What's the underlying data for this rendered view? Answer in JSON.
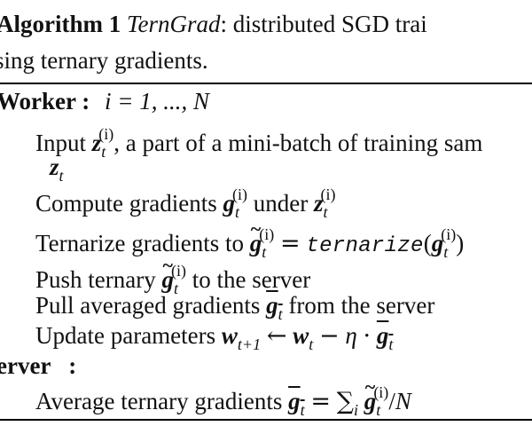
{
  "algorithm": {
    "label": "Algorithm 1",
    "name": "TernGrad",
    "title_line1": ": distributed SGD trai",
    "title_line2": "sing ternary gradients."
  },
  "worker": {
    "header": "Worker :",
    "range": "i = 1, ..., N",
    "steps": {
      "input_prefix": "Input",
      "input_suffix": ", a part of a mini-batch of training sam",
      "compute_prefix": "Compute gradients",
      "compute_mid": "under",
      "ternarize_prefix": "Ternarize gradients to",
      "ternarize_fn": "ternarize",
      "push_prefix": "Push ternary",
      "push_suffix": "to the server",
      "pull_prefix": "Pull averaged gradients",
      "pull_suffix": "from the server",
      "update_prefix": "Update parameters"
    }
  },
  "server": {
    "header": "erver   :",
    "average_prefix": "Average ternary gradients"
  },
  "math": {
    "z": "z",
    "g": "g",
    "w": "w",
    "t": "t",
    "i_sup": "(i)",
    "eta": "η",
    "N": "N"
  }
}
